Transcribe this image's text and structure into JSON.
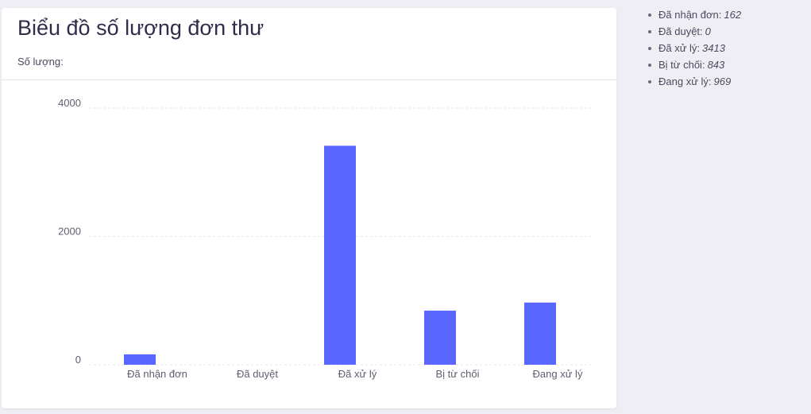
{
  "card": {
    "title": "Biểu đồ số lượng đơn thư",
    "subtitle": "Số lượng:"
  },
  "summary": {
    "items": [
      {
        "label": "Đã nhận đơn:",
        "value": "162"
      },
      {
        "label": "Đã duyệt:",
        "value": "0"
      },
      {
        "label": "Đã xử lý:",
        "value": "3413"
      },
      {
        "label": "Bị từ chối:",
        "value": "843"
      },
      {
        "label": "Đang xử lý:",
        "value": "969"
      }
    ]
  },
  "chart_data": {
    "type": "bar",
    "categories": [
      "Đã nhận đơn",
      "Đã duyệt",
      "Đã xử lý",
      "Bị từ chối",
      "Đang xử lý"
    ],
    "values": [
      162,
      0,
      3413,
      843,
      969
    ],
    "title": "Biểu đồ số lượng đơn thư",
    "ylabel": "Số lượng:",
    "ylim": [
      0,
      4000
    ],
    "yticks": [
      0,
      2000,
      4000
    ],
    "grid": true,
    "bar_color": "#5a67ff",
    "grid_color": "#e6e6ee"
  }
}
